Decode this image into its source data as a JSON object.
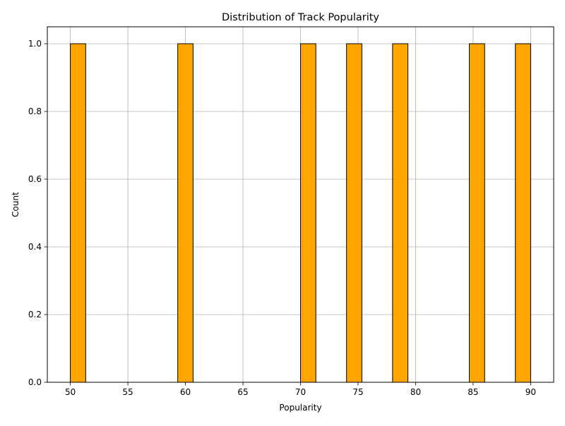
{
  "chart_data": {
    "type": "bar",
    "title": "Distribution of Track Popularity",
    "xlabel": "Popularity",
    "ylabel": "Count",
    "xlim": [
      48.0,
      92.0
    ],
    "ylim": [
      0.0,
      1.05
    ],
    "xticks": [
      50,
      55,
      60,
      65,
      70,
      75,
      80,
      85,
      90
    ],
    "xtick_labels": [
      "50",
      "55",
      "60",
      "65",
      "70",
      "75",
      "80",
      "85",
      "90"
    ],
    "yticks": [
      0.0,
      0.2,
      0.4,
      0.6,
      0.8,
      1.0
    ],
    "ytick_labels": [
      "0.0",
      "0.2",
      "0.4",
      "0.6",
      "0.8",
      "1.0"
    ],
    "grid": true,
    "bin_width": 1.3333,
    "bars": [
      {
        "x0": 50.0,
        "x1": 51.3333,
        "value": 1
      },
      {
        "x0": 59.3333,
        "x1": 60.6667,
        "value": 1
      },
      {
        "x0": 70.0,
        "x1": 71.3333,
        "value": 1
      },
      {
        "x0": 74.0,
        "x1": 75.3333,
        "value": 1
      },
      {
        "x0": 78.0,
        "x1": 79.3333,
        "value": 1
      },
      {
        "x0": 84.6667,
        "x1": 86.0,
        "value": 1
      },
      {
        "x0": 88.6667,
        "x1": 90.0,
        "value": 1
      }
    ],
    "bar_color": "#ffa500",
    "edge_color": "#000000",
    "grid_color": "#b0b0b0"
  }
}
